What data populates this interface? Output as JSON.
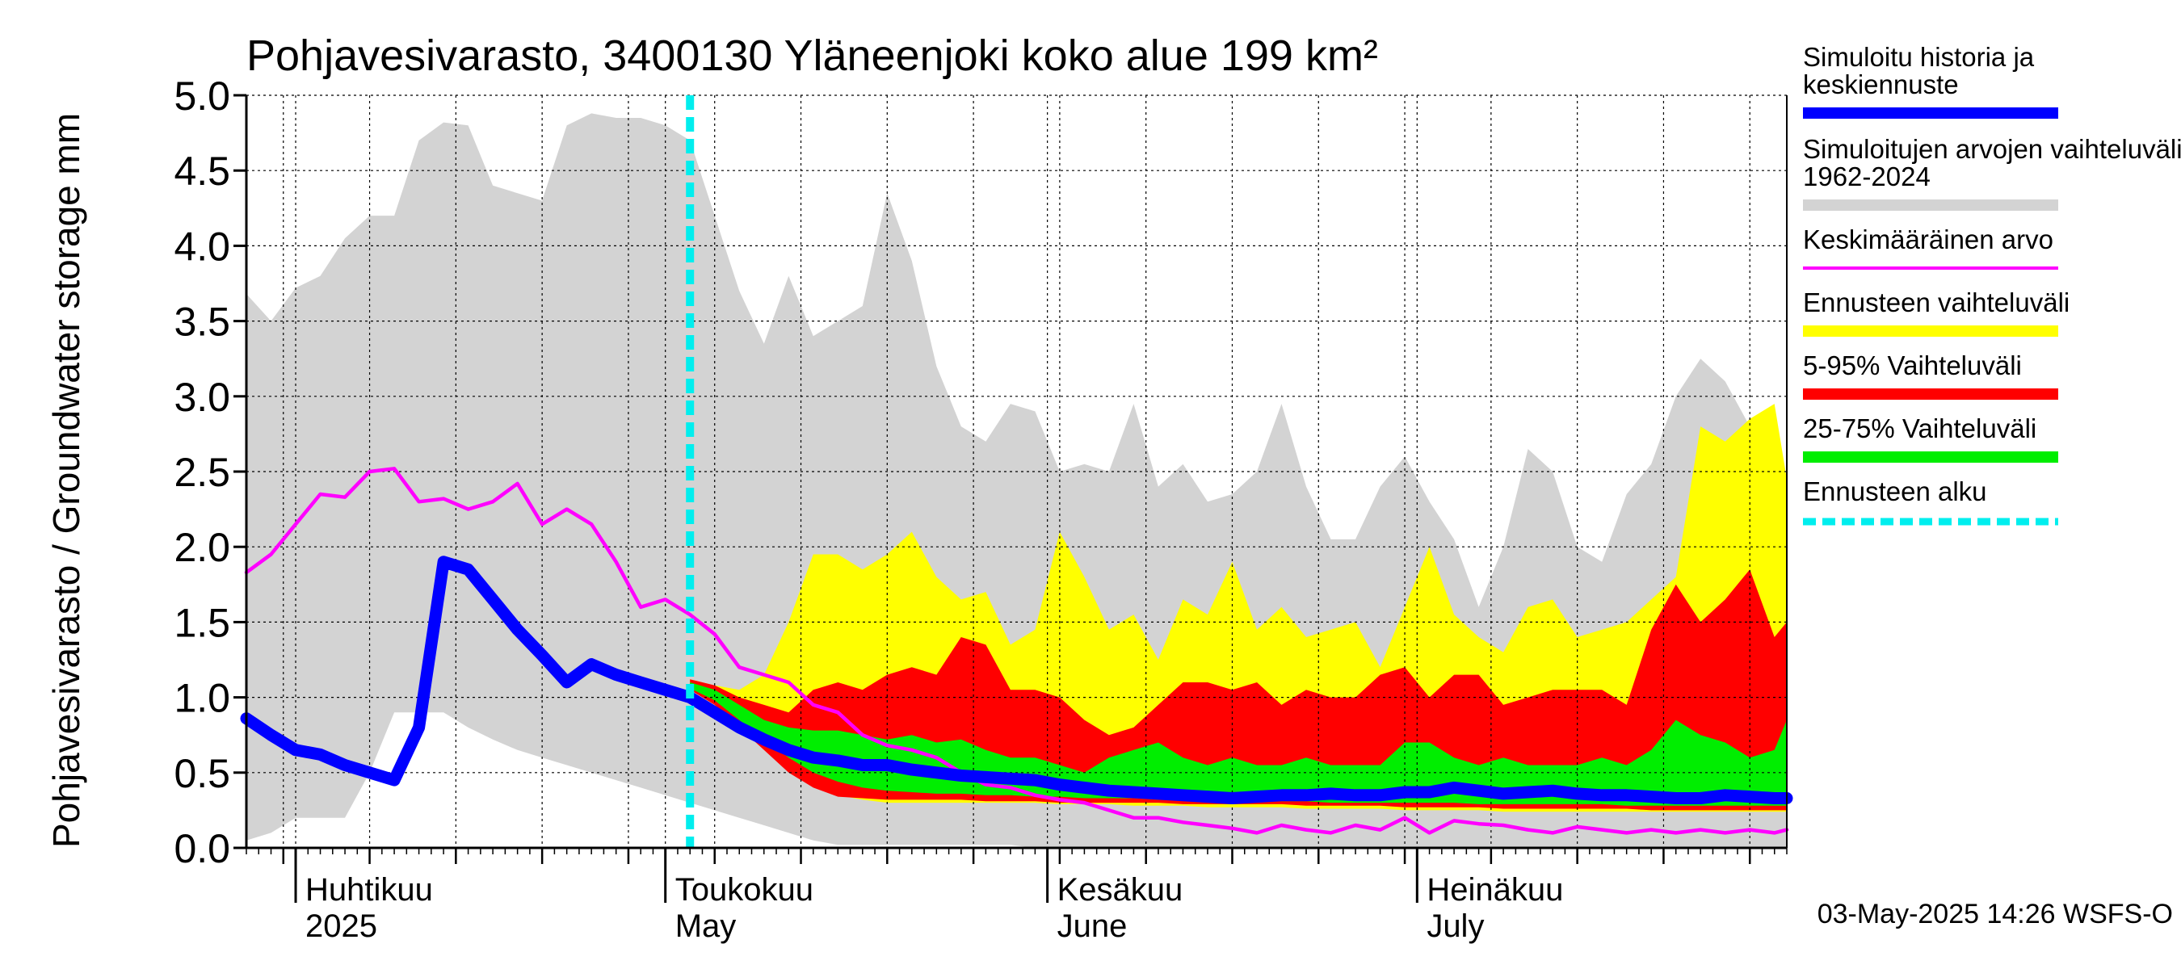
{
  "chart_data": {
    "type": "area",
    "title": "Pohjavesivarasto, 3400130 Yläneenjoki koko alue 199 km²",
    "ylabel": "Pohjavesivarasto / Groundwater storage   mm",
    "ylim": [
      0,
      5
    ],
    "yticks": [
      "0.0",
      "0.5",
      "1.0",
      "1.5",
      "2.0",
      "2.5",
      "3.0",
      "3.5",
      "4.0",
      "4.5",
      "5.0"
    ],
    "x_range": [
      "2025-03-28",
      "2025-07-31"
    ],
    "month_labels": [
      {
        "date": "2025-04-01",
        "line1": "Huhtikuu",
        "line2": "2025"
      },
      {
        "date": "2025-05-01",
        "line1": "Toukokuu",
        "line2": "May"
      },
      {
        "date": "2025-06-01",
        "line1": "Kesäkuu",
        "line2": "June"
      },
      {
        "date": "2025-07-01",
        "line1": "Heinäkuu",
        "line2": "July"
      }
    ],
    "forecast_start": "2025-05-03",
    "footer": "03-May-2025 14:26 WSFS-O",
    "grid": true,
    "legend": {
      "position": "right",
      "items": [
        {
          "label": "Simuloitu historia ja keskiennuste",
          "color": "#0000ff",
          "style": "thick"
        },
        {
          "label": "Simuloitujen arvojen vaihteluväli 1962-2024",
          "color": "#d3d3d3",
          "style": "band"
        },
        {
          "label": "Keskimääräinen arvo",
          "color": "#ff00ff",
          "style": "thin"
        },
        {
          "label": "Ennusteen vaihteluväli",
          "color": "#ffff00",
          "style": "band"
        },
        {
          "label": "5-95% Vaihteluväli",
          "color": "#ff0000",
          "style": "band"
        },
        {
          "label": "25-75% Vaihteluväli",
          "color": "#00ee00",
          "style": "band"
        },
        {
          "label": "Ennusteen alku",
          "color": "#00eeee",
          "style": "dashed"
        }
      ]
    },
    "series": [
      {
        "name": "Simuloitujen arvojen vaihteluväli 1962-2024",
        "color": "#d3d3d3",
        "kind": "band",
        "x": [
          "2025-03-28",
          "2025-03-30",
          "2025-04-01",
          "2025-04-03",
          "2025-04-05",
          "2025-04-07",
          "2025-04-09",
          "2025-04-11",
          "2025-04-13",
          "2025-04-15",
          "2025-04-17",
          "2025-04-19",
          "2025-04-21",
          "2025-04-23",
          "2025-04-25",
          "2025-04-27",
          "2025-04-29",
          "2025-05-01",
          "2025-05-03",
          "2025-05-05",
          "2025-05-07",
          "2025-05-09",
          "2025-05-11",
          "2025-05-13",
          "2025-05-15",
          "2025-05-17",
          "2025-05-19",
          "2025-05-21",
          "2025-05-23",
          "2025-05-25",
          "2025-05-27",
          "2025-05-29",
          "2025-05-31",
          "2025-06-02",
          "2025-06-04",
          "2025-06-06",
          "2025-06-08",
          "2025-06-10",
          "2025-06-12",
          "2025-06-14",
          "2025-06-16",
          "2025-06-18",
          "2025-06-20",
          "2025-06-22",
          "2025-06-24",
          "2025-06-26",
          "2025-06-28",
          "2025-06-30",
          "2025-07-02",
          "2025-07-04",
          "2025-07-06",
          "2025-07-08",
          "2025-07-10",
          "2025-07-12",
          "2025-07-14",
          "2025-07-16",
          "2025-07-18",
          "2025-07-20",
          "2025-07-22",
          "2025-07-24",
          "2025-07-26",
          "2025-07-28",
          "2025-07-30",
          "2025-07-31"
        ],
        "upper": [
          3.68,
          3.5,
          3.72,
          3.8,
          4.05,
          4.2,
          4.2,
          4.7,
          4.82,
          4.8,
          4.4,
          4.35,
          4.3,
          4.8,
          4.88,
          4.85,
          4.85,
          4.8,
          4.7,
          4.2,
          3.7,
          3.35,
          3.8,
          3.4,
          3.5,
          3.6,
          4.35,
          3.9,
          3.2,
          2.8,
          2.7,
          2.95,
          2.9,
          2.5,
          2.55,
          2.5,
          2.95,
          2.4,
          2.55,
          2.3,
          2.35,
          2.5,
          2.95,
          2.4,
          2.05,
          2.05,
          2.4,
          2.6,
          2.3,
          2.05,
          1.6,
          2.0,
          2.65,
          2.5,
          2.0,
          1.9,
          2.35,
          2.55,
          3.0,
          3.25,
          3.1,
          2.8,
          2.45,
          2.4
        ],
        "lower": [
          0.05,
          0.1,
          0.2,
          0.2,
          0.2,
          0.5,
          0.9,
          0.9,
          0.9,
          0.8,
          0.72,
          0.65,
          0.6,
          0.55,
          0.5,
          0.45,
          0.4,
          0.35,
          0.3,
          0.25,
          0.2,
          0.15,
          0.1,
          0.05,
          0.02,
          0.02,
          0.02,
          0.02,
          0.02,
          0.02,
          0.02,
          0.02,
          0.0,
          0.0,
          0.0,
          0.0,
          0.0,
          0.0,
          0.0,
          0.0,
          0.0,
          0.0,
          0.0,
          0.0,
          0.0,
          0.0,
          0.0,
          0.0,
          0.0,
          0.0,
          0.0,
          0.0,
          0.0,
          0.0,
          0.0,
          0.0,
          0.0,
          0.0,
          0.0,
          0.0,
          0.0,
          0.0,
          0.0,
          0.0
        ]
      },
      {
        "name": "Ennusteen vaihteluväli",
        "color": "#ffff00",
        "kind": "band",
        "x": [
          "2025-05-03",
          "2025-05-05",
          "2025-05-07",
          "2025-05-09",
          "2025-05-11",
          "2025-05-13",
          "2025-05-15",
          "2025-05-17",
          "2025-05-19",
          "2025-05-21",
          "2025-05-23",
          "2025-05-25",
          "2025-05-27",
          "2025-05-29",
          "2025-05-31",
          "2025-06-02",
          "2025-06-04",
          "2025-06-06",
          "2025-06-08",
          "2025-06-10",
          "2025-06-12",
          "2025-06-14",
          "2025-06-16",
          "2025-06-18",
          "2025-06-20",
          "2025-06-22",
          "2025-06-24",
          "2025-06-26",
          "2025-06-28",
          "2025-06-30",
          "2025-07-02",
          "2025-07-04",
          "2025-07-06",
          "2025-07-08",
          "2025-07-10",
          "2025-07-12",
          "2025-07-14",
          "2025-07-16",
          "2025-07-18",
          "2025-07-20",
          "2025-07-22",
          "2025-07-24",
          "2025-07-26",
          "2025-07-28",
          "2025-07-30",
          "2025-07-31"
        ],
        "upper": [
          1.12,
          1.08,
          1.05,
          1.15,
          1.5,
          1.95,
          1.95,
          1.85,
          1.95,
          2.1,
          1.8,
          1.65,
          1.7,
          1.35,
          1.45,
          2.1,
          1.8,
          1.45,
          1.55,
          1.25,
          1.65,
          1.55,
          1.9,
          1.45,
          1.6,
          1.4,
          1.45,
          1.5,
          1.2,
          1.6,
          2.0,
          1.55,
          1.4,
          1.3,
          1.6,
          1.65,
          1.4,
          1.45,
          1.5,
          1.65,
          1.8,
          2.8,
          2.7,
          2.85,
          2.95,
          2.45
        ],
        "lower": [
          1.08,
          1.0,
          0.85,
          0.7,
          0.55,
          0.42,
          0.35,
          0.32,
          0.3,
          0.3,
          0.3,
          0.3,
          0.3,
          0.3,
          0.3,
          0.29,
          0.29,
          0.29,
          0.28,
          0.28,
          0.28,
          0.27,
          0.27,
          0.27,
          0.27,
          0.26,
          0.26,
          0.26,
          0.26,
          0.25,
          0.25,
          0.25,
          0.25,
          0.24,
          0.24,
          0.24,
          0.24,
          0.24,
          0.24,
          0.24,
          0.24,
          0.24,
          0.24,
          0.24,
          0.24,
          0.24
        ]
      },
      {
        "name": "5-95% Vaihteluväli",
        "color": "#ff0000",
        "kind": "band",
        "x": [
          "2025-05-03",
          "2025-05-05",
          "2025-05-07",
          "2025-05-09",
          "2025-05-11",
          "2025-05-13",
          "2025-05-15",
          "2025-05-17",
          "2025-05-19",
          "2025-05-21",
          "2025-05-23",
          "2025-05-25",
          "2025-05-27",
          "2025-05-29",
          "2025-05-31",
          "2025-06-02",
          "2025-06-04",
          "2025-06-06",
          "2025-06-08",
          "2025-06-10",
          "2025-06-12",
          "2025-06-14",
          "2025-06-16",
          "2025-06-18",
          "2025-06-20",
          "2025-06-22",
          "2025-06-24",
          "2025-06-26",
          "2025-06-28",
          "2025-06-30",
          "2025-07-02",
          "2025-07-04",
          "2025-07-06",
          "2025-07-08",
          "2025-07-10",
          "2025-07-12",
          "2025-07-14",
          "2025-07-16",
          "2025-07-18",
          "2025-07-20",
          "2025-07-22",
          "2025-07-24",
          "2025-07-26",
          "2025-07-28",
          "2025-07-30",
          "2025-07-31"
        ],
        "upper": [
          1.12,
          1.08,
          1.0,
          0.95,
          0.9,
          1.05,
          1.1,
          1.05,
          1.15,
          1.2,
          1.15,
          1.4,
          1.35,
          1.05,
          1.05,
          1.0,
          0.85,
          0.75,
          0.8,
          0.95,
          1.1,
          1.1,
          1.05,
          1.1,
          0.95,
          1.05,
          1.0,
          1.0,
          1.15,
          1.2,
          1.0,
          1.15,
          1.15,
          0.95,
          1.0,
          1.05,
          1.05,
          1.05,
          0.95,
          1.45,
          1.75,
          1.5,
          1.65,
          1.85,
          1.4,
          1.5
        ],
        "lower": [
          1.05,
          0.95,
          0.8,
          0.65,
          0.5,
          0.4,
          0.34,
          0.33,
          0.32,
          0.32,
          0.32,
          0.32,
          0.31,
          0.31,
          0.31,
          0.3,
          0.3,
          0.3,
          0.3,
          0.3,
          0.29,
          0.29,
          0.29,
          0.29,
          0.29,
          0.28,
          0.28,
          0.28,
          0.28,
          0.27,
          0.27,
          0.27,
          0.27,
          0.26,
          0.26,
          0.26,
          0.26,
          0.26,
          0.26,
          0.25,
          0.25,
          0.25,
          0.25,
          0.25,
          0.25,
          0.25
        ]
      },
      {
        "name": "25-75% Vaihteluväli",
        "color": "#00ee00",
        "kind": "band",
        "x": [
          "2025-05-03",
          "2025-05-05",
          "2025-05-07",
          "2025-05-09",
          "2025-05-11",
          "2025-05-13",
          "2025-05-15",
          "2025-05-17",
          "2025-05-19",
          "2025-05-21",
          "2025-05-23",
          "2025-05-25",
          "2025-05-27",
          "2025-05-29",
          "2025-05-31",
          "2025-06-02",
          "2025-06-04",
          "2025-06-06",
          "2025-06-08",
          "2025-06-10",
          "2025-06-12",
          "2025-06-14",
          "2025-06-16",
          "2025-06-18",
          "2025-06-20",
          "2025-06-22",
          "2025-06-24",
          "2025-06-26",
          "2025-06-28",
          "2025-06-30",
          "2025-07-02",
          "2025-07-04",
          "2025-07-06",
          "2025-07-08",
          "2025-07-10",
          "2025-07-12",
          "2025-07-14",
          "2025-07-16",
          "2025-07-18",
          "2025-07-20",
          "2025-07-22",
          "2025-07-24",
          "2025-07-26",
          "2025-07-28",
          "2025-07-30",
          "2025-07-31"
        ],
        "upper": [
          1.1,
          1.05,
          0.95,
          0.85,
          0.8,
          0.78,
          0.78,
          0.75,
          0.72,
          0.75,
          0.7,
          0.72,
          0.65,
          0.6,
          0.6,
          0.55,
          0.5,
          0.6,
          0.65,
          0.7,
          0.6,
          0.55,
          0.6,
          0.55,
          0.55,
          0.6,
          0.55,
          0.55,
          0.55,
          0.7,
          0.7,
          0.6,
          0.55,
          0.6,
          0.55,
          0.55,
          0.55,
          0.6,
          0.55,
          0.65,
          0.85,
          0.75,
          0.7,
          0.6,
          0.65,
          0.85
        ],
        "lower": [
          1.06,
          0.98,
          0.85,
          0.72,
          0.6,
          0.5,
          0.44,
          0.4,
          0.38,
          0.37,
          0.36,
          0.36,
          0.35,
          0.35,
          0.34,
          0.34,
          0.33,
          0.33,
          0.33,
          0.32,
          0.32,
          0.32,
          0.31,
          0.31,
          0.31,
          0.31,
          0.3,
          0.3,
          0.3,
          0.3,
          0.3,
          0.3,
          0.29,
          0.29,
          0.29,
          0.29,
          0.29,
          0.29,
          0.28,
          0.28,
          0.28,
          0.28,
          0.28,
          0.28,
          0.28,
          0.28
        ]
      },
      {
        "name": "Keskimääräinen arvo",
        "color": "#ff00ff",
        "kind": "line",
        "x": [
          "2025-03-28",
          "2025-03-30",
          "2025-04-01",
          "2025-04-03",
          "2025-04-05",
          "2025-04-07",
          "2025-04-09",
          "2025-04-11",
          "2025-04-13",
          "2025-04-15",
          "2025-04-17",
          "2025-04-19",
          "2025-04-21",
          "2025-04-23",
          "2025-04-25",
          "2025-04-27",
          "2025-04-29",
          "2025-05-01",
          "2025-05-03",
          "2025-05-05",
          "2025-05-07",
          "2025-05-09",
          "2025-05-11",
          "2025-05-13",
          "2025-05-15",
          "2025-05-17",
          "2025-05-19",
          "2025-05-21",
          "2025-05-23",
          "2025-05-25",
          "2025-05-27",
          "2025-05-29",
          "2025-05-31",
          "2025-06-02",
          "2025-06-04",
          "2025-06-06",
          "2025-06-08",
          "2025-06-10",
          "2025-06-12",
          "2025-06-14",
          "2025-06-16",
          "2025-06-18",
          "2025-06-20",
          "2025-06-22",
          "2025-06-24",
          "2025-06-26",
          "2025-06-28",
          "2025-06-30",
          "2025-07-02",
          "2025-07-04",
          "2025-07-06",
          "2025-07-08",
          "2025-07-10",
          "2025-07-12",
          "2025-07-14",
          "2025-07-16",
          "2025-07-18",
          "2025-07-20",
          "2025-07-22",
          "2025-07-24",
          "2025-07-26",
          "2025-07-28",
          "2025-07-30",
          "2025-07-31"
        ],
        "values": [
          1.83,
          1.95,
          2.15,
          2.35,
          2.33,
          2.5,
          2.52,
          2.3,
          2.32,
          2.25,
          2.3,
          2.42,
          2.15,
          2.25,
          2.15,
          1.9,
          1.6,
          1.65,
          1.55,
          1.42,
          1.2,
          1.15,
          1.1,
          0.95,
          0.9,
          0.75,
          0.68,
          0.65,
          0.6,
          0.5,
          0.42,
          0.4,
          0.35,
          0.32,
          0.3,
          0.25,
          0.2,
          0.2,
          0.17,
          0.15,
          0.13,
          0.1,
          0.15,
          0.12,
          0.1,
          0.15,
          0.12,
          0.2,
          0.1,
          0.18,
          0.16,
          0.15,
          0.12,
          0.1,
          0.14,
          0.12,
          0.1,
          0.12,
          0.1,
          0.12,
          0.1,
          0.12,
          0.1,
          0.12
        ]
      },
      {
        "name": "Simuloitu historia ja keskiennuste",
        "color": "#0000ff",
        "kind": "line",
        "x": [
          "2025-03-28",
          "2025-03-30",
          "2025-04-01",
          "2025-04-03",
          "2025-04-05",
          "2025-04-07",
          "2025-04-09",
          "2025-04-11",
          "2025-04-13",
          "2025-04-15",
          "2025-04-17",
          "2025-04-19",
          "2025-04-21",
          "2025-04-23",
          "2025-04-25",
          "2025-04-27",
          "2025-04-29",
          "2025-05-01",
          "2025-05-03",
          "2025-05-05",
          "2025-05-07",
          "2025-05-09",
          "2025-05-11",
          "2025-05-13",
          "2025-05-15",
          "2025-05-17",
          "2025-05-19",
          "2025-05-21",
          "2025-05-23",
          "2025-05-25",
          "2025-05-27",
          "2025-05-29",
          "2025-05-31",
          "2025-06-02",
          "2025-06-04",
          "2025-06-06",
          "2025-06-08",
          "2025-06-10",
          "2025-06-12",
          "2025-06-14",
          "2025-06-16",
          "2025-06-18",
          "2025-06-20",
          "2025-06-22",
          "2025-06-24",
          "2025-06-26",
          "2025-06-28",
          "2025-06-30",
          "2025-07-02",
          "2025-07-04",
          "2025-07-06",
          "2025-07-08",
          "2025-07-10",
          "2025-07-12",
          "2025-07-14",
          "2025-07-16",
          "2025-07-18",
          "2025-07-20",
          "2025-07-22",
          "2025-07-24",
          "2025-07-26",
          "2025-07-28",
          "2025-07-30",
          "2025-07-31"
        ],
        "values": [
          0.86,
          0.75,
          0.65,
          0.62,
          0.55,
          0.5,
          0.45,
          0.8,
          1.9,
          1.85,
          1.65,
          1.45,
          1.28,
          1.1,
          1.22,
          1.15,
          1.1,
          1.05,
          1.0,
          0.9,
          0.8,
          0.72,
          0.65,
          0.6,
          0.58,
          0.55,
          0.55,
          0.52,
          0.5,
          0.48,
          0.47,
          0.46,
          0.45,
          0.42,
          0.4,
          0.38,
          0.37,
          0.36,
          0.35,
          0.34,
          0.33,
          0.34,
          0.35,
          0.35,
          0.36,
          0.35,
          0.35,
          0.37,
          0.37,
          0.4,
          0.38,
          0.36,
          0.37,
          0.38,
          0.36,
          0.35,
          0.35,
          0.34,
          0.33,
          0.33,
          0.35,
          0.34,
          0.33,
          0.33
        ]
      }
    ]
  }
}
